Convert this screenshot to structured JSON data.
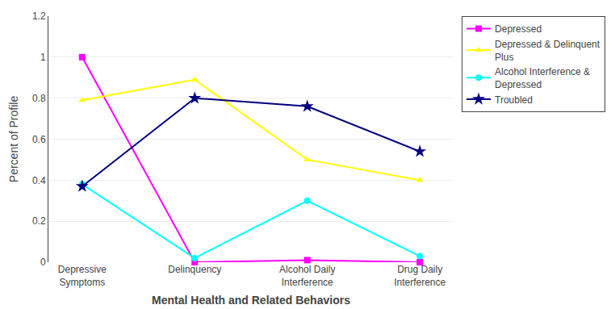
{
  "chart_data": {
    "type": "line",
    "categories": [
      "Depressive\nSymptoms",
      "Delinquency",
      "Alcohol Daily\nInterference",
      "Drug Daily\nInterference"
    ],
    "series": [
      {
        "name": "Depressed",
        "values": [
          1.0,
          0.0,
          0.01,
          0.0
        ],
        "color": "#FF00FF",
        "marker": "square",
        "line_style": "solid"
      },
      {
        "name": "Depressed & Delinquent\nPlus",
        "values": [
          0.79,
          0.89,
          0.5,
          0.4
        ],
        "color": "#FFFF00",
        "marker": "triangle-up",
        "line_style": "solid"
      },
      {
        "name": "Alcohol Interference &\nDepressed",
        "values": [
          0.38,
          0.02,
          0.3,
          0.03
        ],
        "color": "#00FFFF",
        "marker": "circle",
        "line_style": "solid"
      },
      {
        "name": "Troubled",
        "values": [
          0.37,
          0.8,
          0.76,
          0.54
        ],
        "color": "#000080",
        "marker": "star",
        "line_style": "solid"
      }
    ],
    "xlabel": "Mental Health and Related Behaviors",
    "ylabel": "Percent of Profile",
    "ylim": [
      0.0,
      1.2
    ],
    "yticks": [
      0.0,
      0.2,
      0.4,
      0.6,
      0.8,
      1.0,
      {
        "value": 1.2,
        "label": "1.2"
      }
    ],
    "grid": "y",
    "legend": "right"
  }
}
